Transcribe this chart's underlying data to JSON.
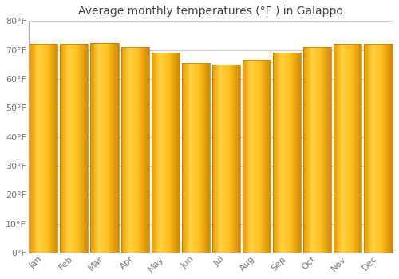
{
  "title": "Average monthly temperatures (°F ) in Galappo",
  "months": [
    "Jan",
    "Feb",
    "Mar",
    "Apr",
    "May",
    "Jun",
    "Jul",
    "Aug",
    "Sep",
    "Oct",
    "Nov",
    "Dec"
  ],
  "values": [
    72,
    72,
    72.5,
    71,
    69,
    65.5,
    65,
    66.5,
    69,
    71,
    72,
    72
  ],
  "ylim": [
    0,
    80
  ],
  "yticks": [
    0,
    10,
    20,
    30,
    40,
    50,
    60,
    70,
    80
  ],
  "ytick_labels": [
    "0°F",
    "10°F",
    "20°F",
    "30°F",
    "40°F",
    "50°F",
    "60°F",
    "70°F",
    "80°F"
  ],
  "bar_color_left": "#F5A800",
  "bar_color_mid": "#FFD050",
  "bar_color_right": "#E09000",
  "background_color": "#FFFFFF",
  "plot_bg_color": "#FFFFFF",
  "grid_color": "#CCCCCC",
  "title_fontsize": 10,
  "tick_fontsize": 8,
  "title_color": "#444444",
  "tick_color": "#777777",
  "bar_width": 0.92
}
